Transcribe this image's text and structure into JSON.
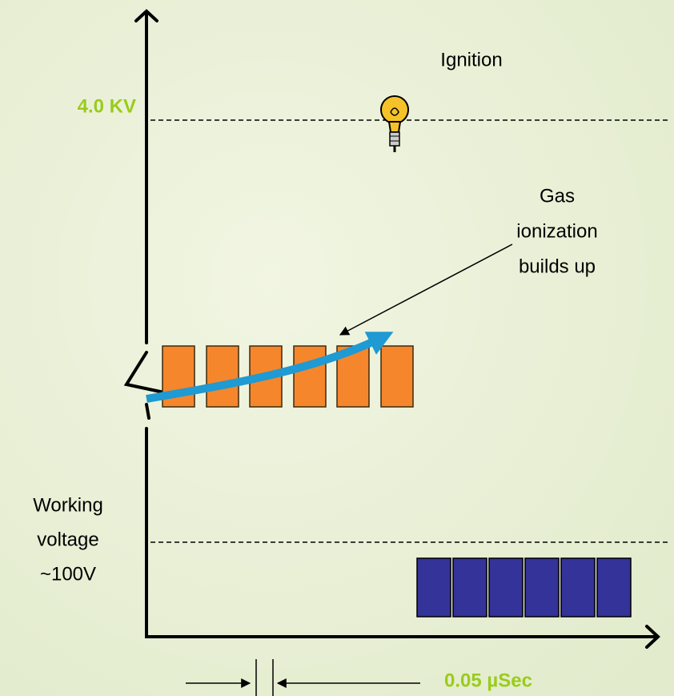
{
  "ignition": "Ignition",
  "high_voltage": "4.0 KV",
  "ionization": [
    "Gas",
    "ionization",
    "builds up"
  ],
  "working_voltage": [
    "Working",
    "voltage",
    "~100V"
  ],
  "interval": "0.05 µSec"
}
